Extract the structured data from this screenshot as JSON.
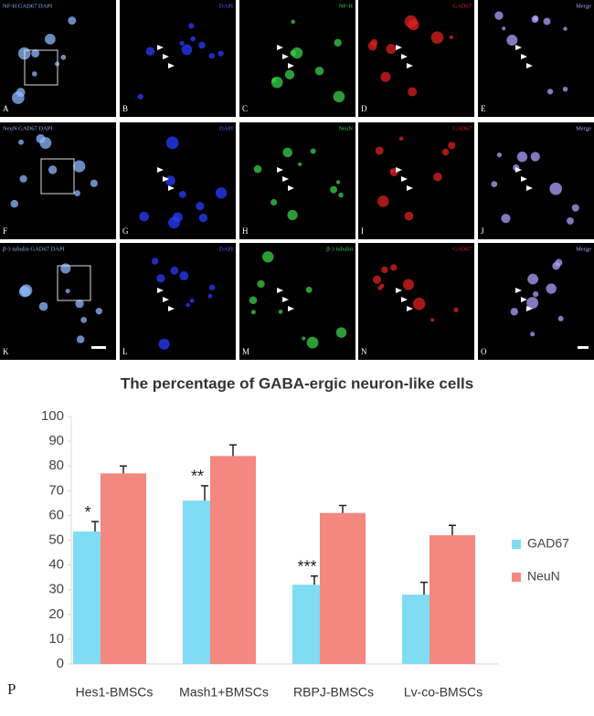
{
  "panels": [
    {
      "letter": "A",
      "label": "NF-H GAD67 DAPI"
    },
    {
      "letter": "B",
      "label": "DAPI"
    },
    {
      "letter": "C",
      "label": "NF-H"
    },
    {
      "letter": "D",
      "label": "GAD67"
    },
    {
      "letter": "E",
      "label": "Merge"
    },
    {
      "letter": "F",
      "label": "NeuN GAD67 DAPI"
    },
    {
      "letter": "G",
      "label": "DAPI"
    },
    {
      "letter": "H",
      "label": "NeuN"
    },
    {
      "letter": "I",
      "label": "GAD67"
    },
    {
      "letter": "J",
      "label": "Merge"
    },
    {
      "letter": "K",
      "label": "β-3 tubulin GAD67 DAPI"
    },
    {
      "letter": "L",
      "label": "DAPI"
    },
    {
      "letter": "M",
      "label": "β-3 tubulin"
    },
    {
      "letter": "N",
      "label": "GAD67"
    },
    {
      "letter": "O",
      "label": "Merge"
    }
  ],
  "chart_data": {
    "type": "bar",
    "panel_label": "P",
    "title": "The percentage of GABA-ergic neuron-like cells",
    "categories": [
      "Hes1-BMSCs",
      "Mash1+BMSCs",
      "RBPJ-BMSCs",
      "Lv-co-BMSCs"
    ],
    "series": [
      {
        "name": "GAD67",
        "color": "#7fdcf2",
        "values": [
          53.5,
          66,
          32,
          28
        ],
        "errors": [
          4,
          6,
          3.5,
          5
        ]
      },
      {
        "name": "NeuN",
        "color": "#f4877f",
        "values": [
          77,
          84,
          61,
          52
        ],
        "errors": [
          3,
          4.5,
          3,
          4
        ]
      }
    ],
    "significance": [
      "*",
      "**",
      "***",
      null
    ],
    "ylim": [
      0,
      100
    ],
    "yticks": [
      0,
      10,
      20,
      30,
      40,
      50,
      60,
      70,
      80,
      90,
      100
    ],
    "legend": "right"
  }
}
